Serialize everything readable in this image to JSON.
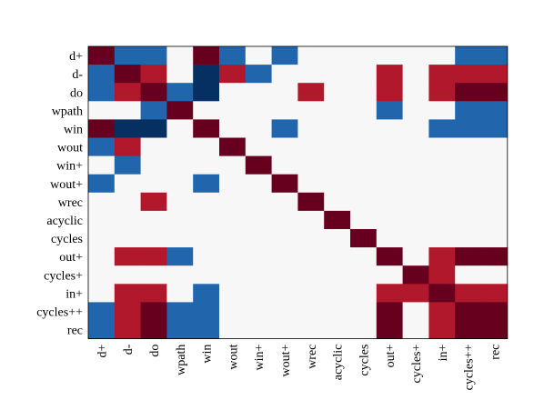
{
  "chart_data": {
    "type": "heatmap",
    "title": "",
    "xlabel": "",
    "ylabel": "",
    "legend": "none",
    "grid": false,
    "rows": [
      "d+",
      "d-",
      "do",
      "wpath",
      "win",
      "wout",
      "win+",
      "wout+",
      "wrec",
      "acyclic",
      "cycles",
      "out+",
      "cycles+",
      "in+",
      "cycles++",
      "rec"
    ],
    "columns": [
      "d+",
      "d-",
      "do",
      "wpath",
      "win",
      "wout",
      "win+",
      "wout+",
      "wrec",
      "acyclic",
      "cycles",
      "out+",
      "cycles+",
      "in+",
      "cycles++",
      "rec"
    ],
    "value_range": [
      -1,
      1
    ],
    "colors": {
      "strong_positive": "#67001f",
      "positive": "#b2182b",
      "zero": "#f7f7f7",
      "negative": "#2166ac",
      "strong_negative": "#053061"
    },
    "values": [
      [
        1.0,
        -0.6,
        -0.6,
        0.0,
        1.0,
        -0.6,
        0.0,
        -0.6,
        0.0,
        0.0,
        0.0,
        0.0,
        0.0,
        0.0,
        -0.6,
        -0.6
      ],
      [
        -0.6,
        1.0,
        0.7,
        0.0,
        -1.0,
        0.7,
        -0.6,
        0.0,
        0.0,
        0.0,
        0.0,
        0.7,
        0.0,
        0.7,
        0.7,
        0.7
      ],
      [
        -0.6,
        0.7,
        1.0,
        -0.6,
        -1.0,
        0.0,
        0.0,
        0.0,
        0.7,
        0.0,
        0.0,
        0.7,
        0.0,
        0.7,
        1.0,
        1.0
      ],
      [
        0.0,
        0.0,
        -0.6,
        1.0,
        0.0,
        0.0,
        0.0,
        0.0,
        0.0,
        0.0,
        0.0,
        -0.6,
        0.0,
        0.0,
        -0.6,
        -0.6
      ],
      [
        1.0,
        -1.0,
        -1.0,
        0.0,
        1.0,
        0.0,
        0.0,
        -0.6,
        0.0,
        0.0,
        0.0,
        0.0,
        0.0,
        -0.6,
        -0.6,
        -0.6
      ],
      [
        -0.6,
        0.7,
        0.0,
        0.0,
        0.0,
        1.0,
        0.0,
        0.0,
        0.0,
        0.0,
        0.0,
        0.0,
        0.0,
        0.0,
        0.0,
        0.0
      ],
      [
        0.0,
        -0.6,
        0.0,
        0.0,
        0.0,
        0.0,
        1.0,
        0.0,
        0.0,
        0.0,
        0.0,
        0.0,
        0.0,
        0.0,
        0.0,
        0.0
      ],
      [
        -0.6,
        0.0,
        0.0,
        0.0,
        -0.6,
        0.0,
        0.0,
        1.0,
        0.0,
        0.0,
        0.0,
        0.0,
        0.0,
        0.0,
        0.0,
        0.0
      ],
      [
        0.0,
        0.0,
        0.7,
        0.0,
        0.0,
        0.0,
        0.0,
        0.0,
        1.0,
        0.0,
        0.0,
        0.0,
        0.0,
        0.0,
        0.0,
        0.0
      ],
      [
        0.0,
        0.0,
        0.0,
        0.0,
        0.0,
        0.0,
        0.0,
        0.0,
        0.0,
        1.0,
        0.0,
        0.0,
        0.0,
        0.0,
        0.0,
        0.0
      ],
      [
        0.0,
        0.0,
        0.0,
        0.0,
        0.0,
        0.0,
        0.0,
        0.0,
        0.0,
        0.0,
        1.0,
        0.0,
        0.0,
        0.0,
        0.0,
        0.0
      ],
      [
        0.0,
        0.7,
        0.7,
        -0.6,
        0.0,
        0.0,
        0.0,
        0.0,
        0.0,
        0.0,
        0.0,
        1.0,
        0.0,
        0.7,
        1.0,
        1.0
      ],
      [
        0.0,
        0.0,
        0.0,
        0.0,
        0.0,
        0.0,
        0.0,
        0.0,
        0.0,
        0.0,
        0.0,
        0.0,
        1.0,
        0.7,
        0.0,
        0.0
      ],
      [
        0.0,
        0.7,
        0.7,
        0.0,
        -0.6,
        0.0,
        0.0,
        0.0,
        0.0,
        0.0,
        0.0,
        0.7,
        0.7,
        1.0,
        0.7,
        0.7
      ],
      [
        -0.6,
        0.7,
        1.0,
        -0.6,
        -0.6,
        0.0,
        0.0,
        0.0,
        0.0,
        0.0,
        0.0,
        1.0,
        0.0,
        0.7,
        1.0,
        1.0
      ],
      [
        -0.6,
        0.7,
        1.0,
        -0.6,
        -0.6,
        0.0,
        0.0,
        0.0,
        0.0,
        0.0,
        0.0,
        1.0,
        0.0,
        0.7,
        1.0,
        1.0
      ]
    ]
  }
}
